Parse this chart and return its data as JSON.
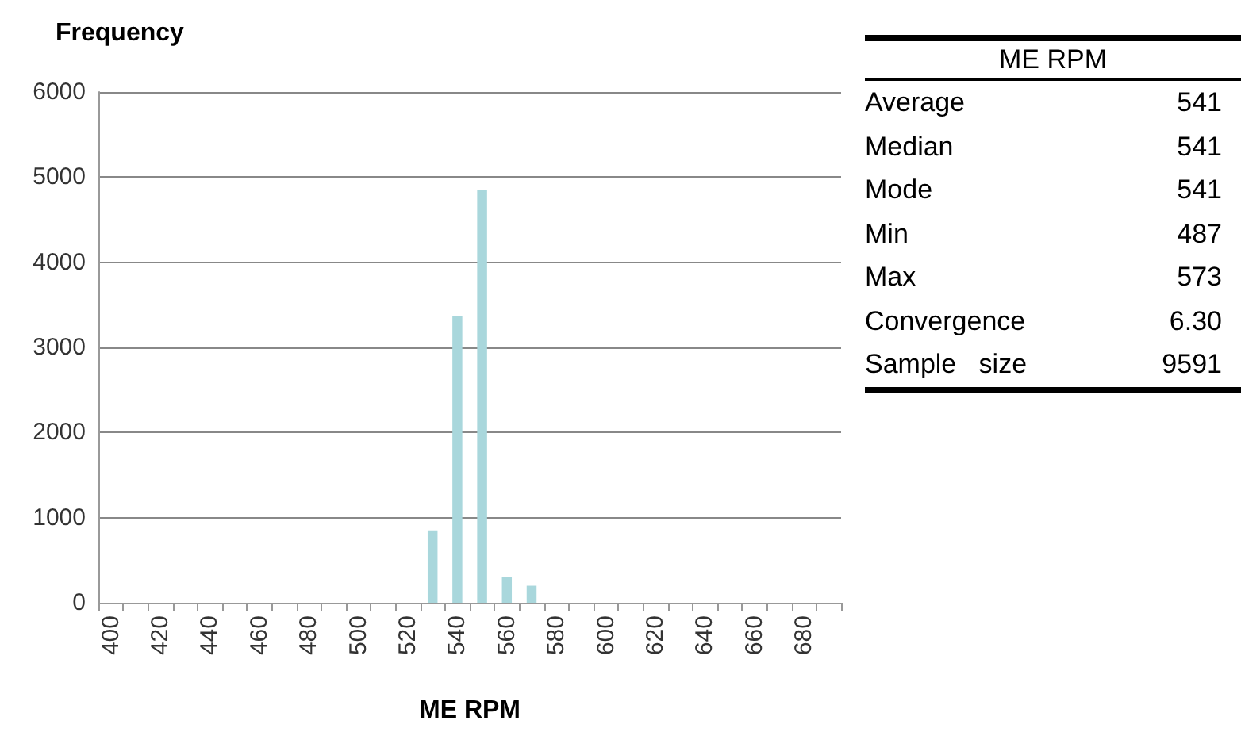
{
  "chart_data": [
    {
      "type": "bar",
      "ylabel": "Frequency",
      "xlabel": "ME RPM",
      "categories": [
        "400",
        null,
        "420",
        null,
        "440",
        null,
        "460",
        null,
        "480",
        null,
        "500",
        null,
        "520",
        null,
        "540",
        null,
        "560",
        null,
        "580",
        null,
        "600",
        null,
        "620",
        null,
        "640",
        null,
        "660",
        null,
        "680",
        null
      ],
      "values": [
        0,
        0,
        0,
        0,
        0,
        0,
        0,
        0,
        0,
        0,
        0,
        0,
        0,
        850,
        3370,
        4850,
        300,
        200,
        0,
        0,
        0,
        0,
        0,
        0,
        0,
        0,
        0,
        0,
        0,
        0
      ],
      "color": "#a9d7dc",
      "ylim": [
        0,
        6000
      ],
      "yticks": [
        0,
        1000,
        2000,
        3000,
        4000,
        5000,
        6000
      ],
      "grid": "y"
    },
    {
      "type": "other",
      "title": "ME RPM",
      "annotations": [
        "Average",
        "541",
        "Median",
        "541",
        "Mode",
        "541",
        "Min",
        "487",
        "Max",
        "573",
        "Convergence",
        "6.30",
        "Sample   size",
        "9591"
      ]
    }
  ]
}
